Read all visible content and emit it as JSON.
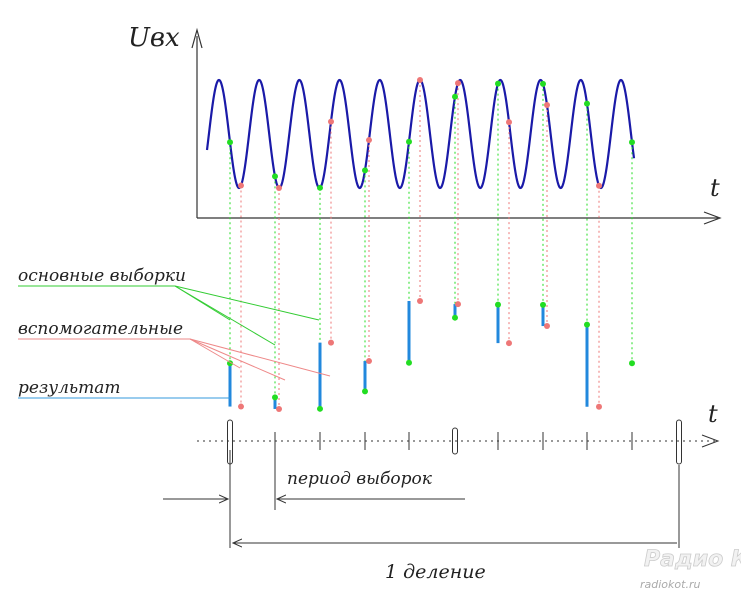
{
  "labels": {
    "y_axis": "Uвх",
    "x_axis_top": "t",
    "x_axis_bottom": "t",
    "main_samples": "основные выборки",
    "aux_samples": "вспомогательные",
    "result": "результат",
    "sample_period": "период выборок",
    "one_division": "1 деление"
  },
  "watermark": {
    "title": "Радио КОТ",
    "url": "radiokot.ru"
  },
  "colors": {
    "sine": "#1a1aa8",
    "main_sample": "#22dd22",
    "aux_sample": "#ee7777",
    "result_bar": "#2288dd",
    "axis": "#333333",
    "callout_green": "#33cc33",
    "callout_red": "#ee8888",
    "callout_blue": "#3399dd"
  }
}
